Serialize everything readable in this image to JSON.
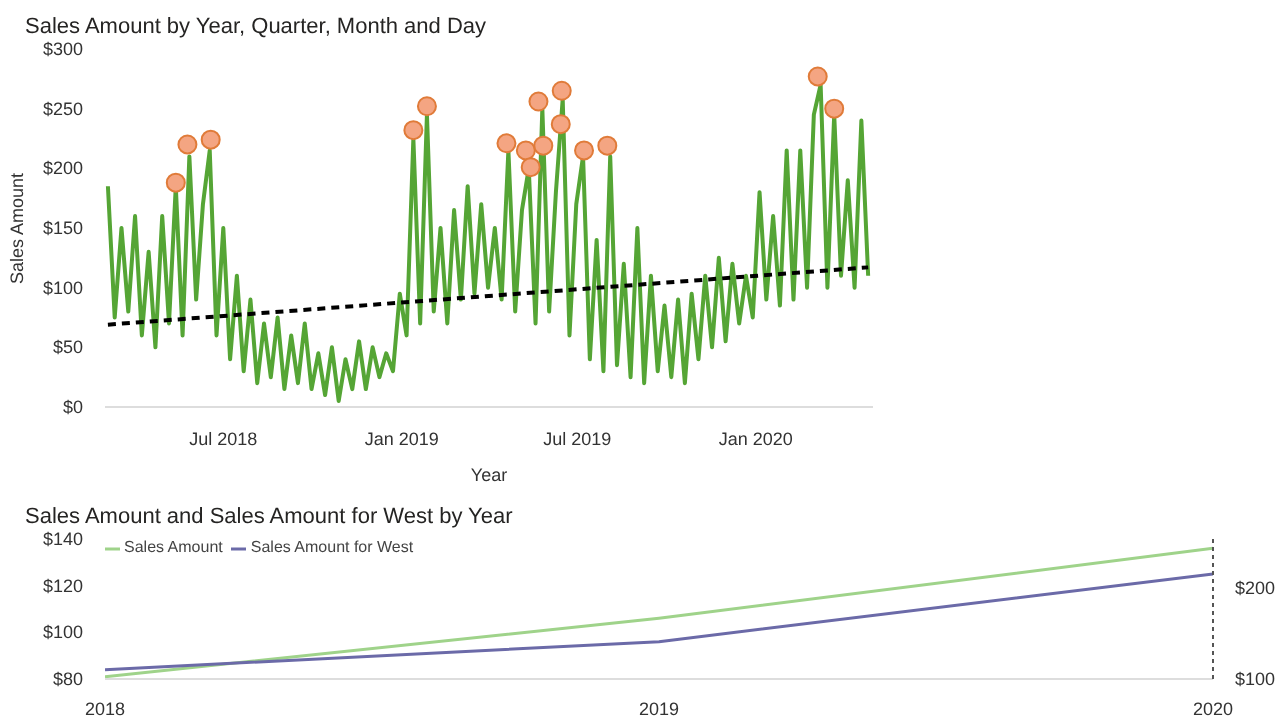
{
  "chart_data": [
    {
      "type": "line",
      "title": "Sales Amount by Year, Quarter, Month and Day",
      "xlabel": "Year",
      "ylabel": "Sales Amount",
      "xlim": [
        "2018-03-01",
        "2020-05-01"
      ],
      "xticks": [
        {
          "value": "2018-07-01",
          "label": "Jul 2018"
        },
        {
          "value": "2019-01-01",
          "label": "Jan 2019"
        },
        {
          "value": "2019-07-01",
          "label": "Jul 2019"
        },
        {
          "value": "2020-01-01",
          "label": "Jan 2020"
        }
      ],
      "ylim": [
        0,
        300
      ],
      "yticks": [
        {
          "value": 0,
          "label": "$0"
        },
        {
          "value": 50,
          "label": "$50"
        },
        {
          "value": 100,
          "label": "$100"
        },
        {
          "value": 150,
          "label": "$150"
        },
        {
          "value": 200,
          "label": "$200"
        },
        {
          "value": 250,
          "label": "$250"
        },
        {
          "value": 300,
          "label": "$300"
        }
      ],
      "series": [
        {
          "type": "line",
          "color": "#55a535",
          "x": [
            "2018-03-04",
            "2018-03-11",
            "2018-03-18",
            "2018-03-25",
            "2018-04-01",
            "2018-04-08",
            "2018-04-15",
            "2018-04-22",
            "2018-04-29",
            "2018-05-06",
            "2018-05-13",
            "2018-05-20",
            "2018-05-27",
            "2018-06-03",
            "2018-06-10",
            "2018-06-17",
            "2018-06-24",
            "2018-07-01",
            "2018-07-08",
            "2018-07-15",
            "2018-07-22",
            "2018-07-29",
            "2018-08-05",
            "2018-08-12",
            "2018-08-19",
            "2018-08-26",
            "2018-09-02",
            "2018-09-09",
            "2018-09-16",
            "2018-09-23",
            "2018-09-30",
            "2018-10-07",
            "2018-10-14",
            "2018-10-21",
            "2018-10-28",
            "2018-11-04",
            "2018-11-11",
            "2018-11-18",
            "2018-11-25",
            "2018-12-02",
            "2018-12-09",
            "2018-12-16",
            "2018-12-23",
            "2018-12-30",
            "2019-01-06",
            "2019-01-13",
            "2019-01-20",
            "2019-01-27",
            "2019-02-03",
            "2019-02-10",
            "2019-02-17",
            "2019-02-24",
            "2019-03-03",
            "2019-03-10",
            "2019-03-17",
            "2019-03-24",
            "2019-03-31",
            "2019-04-07",
            "2019-04-14",
            "2019-04-21",
            "2019-04-28",
            "2019-05-05",
            "2019-05-12",
            "2019-05-19",
            "2019-05-26",
            "2019-06-02",
            "2019-06-09",
            "2019-06-16",
            "2019-06-23",
            "2019-06-30",
            "2019-07-07",
            "2019-07-14",
            "2019-07-21",
            "2019-07-28",
            "2019-08-04",
            "2019-08-11",
            "2019-08-18",
            "2019-08-25",
            "2019-09-01",
            "2019-09-08",
            "2019-09-15",
            "2019-09-22",
            "2019-09-29",
            "2019-10-06",
            "2019-10-13",
            "2019-10-20",
            "2019-10-27",
            "2019-11-03",
            "2019-11-10",
            "2019-11-17",
            "2019-11-24",
            "2019-12-01",
            "2019-12-08",
            "2019-12-15",
            "2019-12-22",
            "2019-12-29",
            "2020-01-05",
            "2020-01-12",
            "2020-01-19",
            "2020-01-26",
            "2020-02-02",
            "2020-02-09",
            "2020-02-16",
            "2020-02-23",
            "2020-03-01",
            "2020-03-08",
            "2020-03-15",
            "2020-03-22",
            "2020-03-29",
            "2020-04-05",
            "2020-04-12",
            "2020-04-19",
            "2020-04-26"
          ],
          "values": [
            185,
            75,
            150,
            80,
            160,
            60,
            130,
            50,
            160,
            70,
            185,
            60,
            210,
            90,
            170,
            215,
            60,
            150,
            40,
            110,
            30,
            90,
            20,
            70,
            25,
            75,
            15,
            60,
            20,
            70,
            15,
            45,
            10,
            50,
            5,
            40,
            15,
            55,
            15,
            50,
            25,
            45,
            30,
            95,
            60,
            225,
            70,
            245,
            80,
            150,
            70,
            165,
            90,
            185,
            95,
            170,
            100,
            150,
            90,
            215,
            80,
            165,
            200,
            70,
            250,
            80,
            180,
            258,
            60,
            170,
            210,
            40,
            140,
            30,
            210,
            35,
            120,
            25,
            150,
            20,
            110,
            30,
            85,
            25,
            90,
            20,
            95,
            40,
            110,
            50,
            125,
            55,
            120,
            70,
            110,
            75,
            180,
            90,
            160,
            85,
            215,
            90,
            215,
            100,
            245,
            270,
            100,
            245,
            110,
            190,
            100,
            240,
            110
          ]
        },
        {
          "type": "line",
          "color": "#000000",
          "line_style": "dashed",
          "x": [
            "2018-03-04",
            "2020-04-26"
          ],
          "values": [
            69,
            117
          ]
        },
        {
          "type": "scatter",
          "color": "#f4a582",
          "marker": "circle",
          "x": [
            "2018-05-13",
            "2018-05-25",
            "2018-06-18",
            "2019-01-13",
            "2019-01-27",
            "2019-04-19",
            "2019-05-09",
            "2019-05-14",
            "2019-05-22",
            "2019-05-27",
            "2019-06-14",
            "2019-06-15",
            "2019-07-08",
            "2019-08-01",
            "2020-03-05",
            "2020-03-22"
          ],
          "values": [
            188,
            220,
            224,
            232,
            252,
            221,
            215,
            201,
            256,
            219,
            237,
            265,
            215,
            219,
            277,
            250
          ]
        }
      ]
    },
    {
      "type": "line",
      "title": "Sales Amount and Sales Amount for West by Year",
      "legend": "top left",
      "x": [
        2018,
        2019,
        2020
      ],
      "xlim": [
        2018,
        2020
      ],
      "xticks": [
        2018,
        2019,
        2020
      ],
      "ylim": [
        80,
        140
      ],
      "yticks": [
        {
          "value": 80,
          "label": "$80"
        },
        {
          "value": 100,
          "label": "$100"
        },
        {
          "value": 120,
          "label": "$120"
        },
        {
          "value": 140,
          "label": "$140"
        }
      ],
      "y2lim": [
        100,
        254
      ],
      "y2ticks": [
        {
          "value": 100,
          "label": "$100"
        },
        {
          "value": 200,
          "label": "$200"
        }
      ],
      "series": [
        {
          "name": "Sales Amount",
          "color": "#9fd38a",
          "values": [
            81,
            106,
            136
          ]
        },
        {
          "name": "Sales Amount for West",
          "color": "#6b6aa8",
          "values": [
            84,
            96,
            125
          ]
        }
      ]
    }
  ]
}
